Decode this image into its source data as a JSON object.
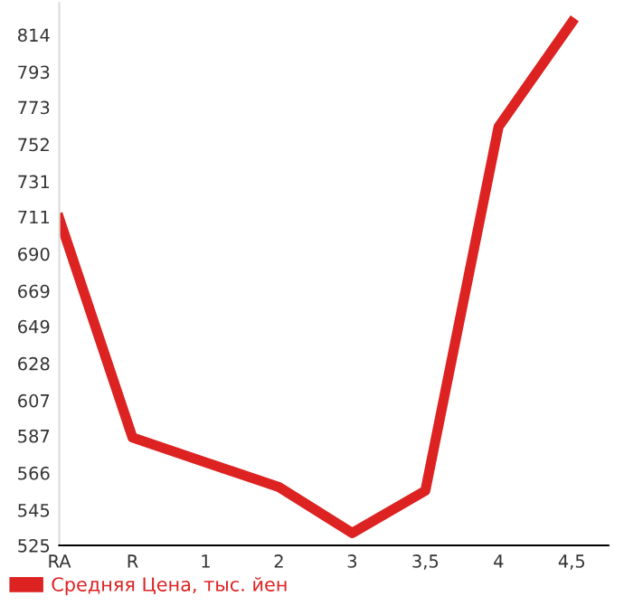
{
  "chart_data": {
    "type": "line",
    "categories": [
      "RA",
      "R",
      "1",
      "2",
      "3",
      "3,5",
      "4",
      "4,5"
    ],
    "series": [
      {
        "name": "Средняя Цена, тыс. йен",
        "color": "#dd2222",
        "values": [
          710,
          586,
          572,
          558,
          532,
          556,
          762,
          821
        ]
      }
    ],
    "ylim": [
      525,
      832
    ],
    "yticks": [
      525,
      545,
      566,
      587,
      607,
      628,
      649,
      669,
      690,
      711,
      731,
      752,
      773,
      793,
      814
    ],
    "grid": false,
    "legend": "bottom left",
    "marker": "none",
    "line_style": "solid"
  }
}
